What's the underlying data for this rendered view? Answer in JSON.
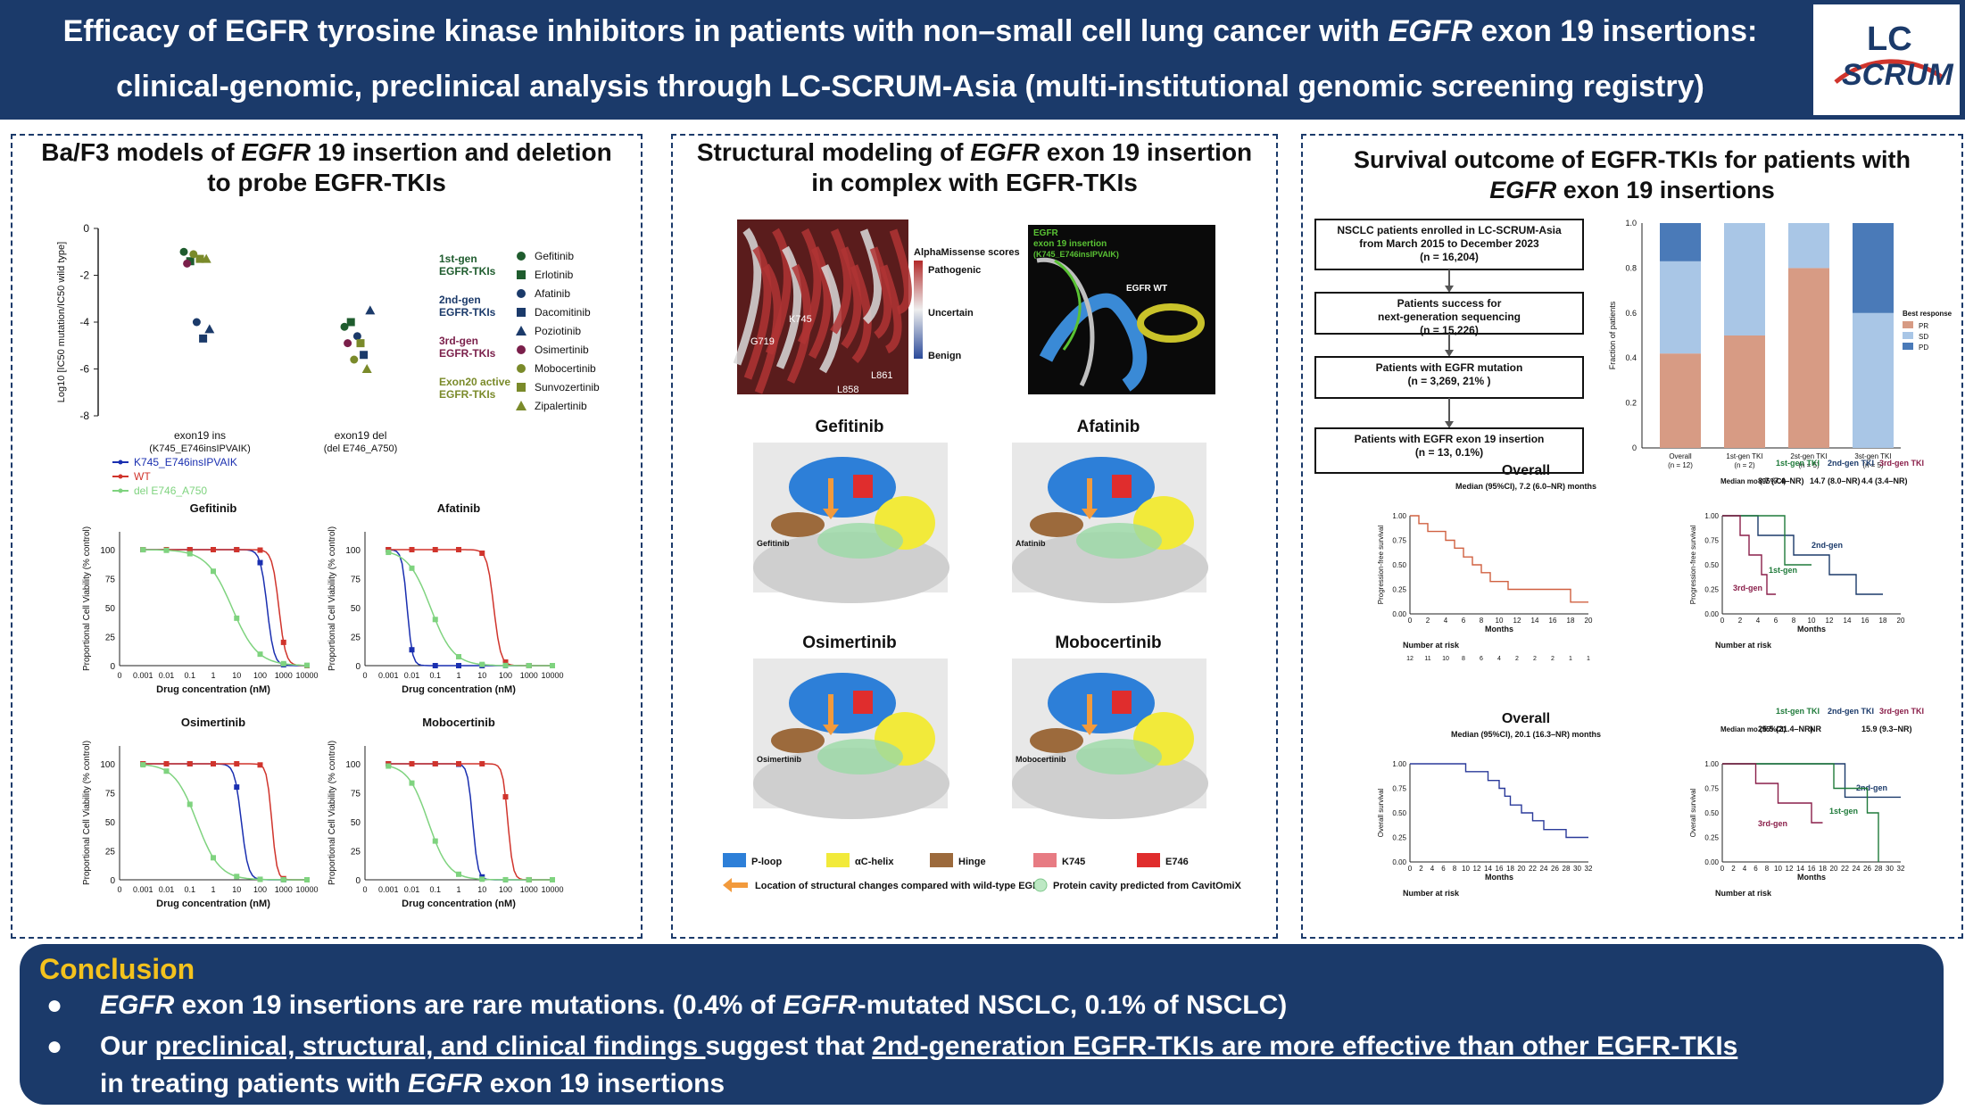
{
  "header": {
    "title_line1_a": "Efficacy of EGFR tyrosine kinase inhibitors in patients with non–small cell lung cancer with ",
    "title_line1_i": "EGFR",
    "title_line1_b": " exon 19 insertions:",
    "title_line2": "clinical-genomic, preclinical analysis through LC-SCRUM-Asia (multi-institutional genomic screening registry)",
    "logo_top": "LC",
    "logo_bottom": "SCRUM"
  },
  "left_panel": {
    "title_a": "Ba/F3 models of ",
    "title_i": "EGFR",
    "title_b": " 19 insertion and deletion",
    "title_line2": "to probe EGFR-TKIs",
    "ylabel": "Log10 [IC50 mutation/IC50 wild type]",
    "yticks": [
      "0",
      "-2",
      "-4",
      "-6",
      "-8"
    ],
    "x_labels": [
      {
        "l1": "exon19 ins",
        "l2": "(K745_E746insIPVAIK)"
      },
      {
        "l1": "exon19 del",
        "l2": "(del E746_A750)"
      }
    ],
    "legend_groups": [
      {
        "name1": "1st-gen",
        "name2": "EGFR-TKIs",
        "color": "#1f5c2e"
      },
      {
        "name1": "2nd-gen",
        "name2": "EGFR-TKIs",
        "color": "#1b3a6a"
      },
      {
        "name1": "3rd-gen",
        "name2": "EGFR-TKIs",
        "color": "#7a1f4a"
      },
      {
        "name1": "Exon20 active",
        "name2": "EGFR-TKIs",
        "color": "#7a8a2a"
      }
    ],
    "legend_drugs": [
      {
        "name": "Gefitinib",
        "color": "#1f5c2e",
        "shape": "circle"
      },
      {
        "name": "Erlotinib",
        "color": "#1f5c2e",
        "shape": "square"
      },
      {
        "name": "Afatinib",
        "color": "#1b3a6a",
        "shape": "circle"
      },
      {
        "name": "Dacomitinib",
        "color": "#1b3a6a",
        "shape": "square"
      },
      {
        "name": "Poziotinib",
        "color": "#1b3a6a",
        "shape": "triangle"
      },
      {
        "name": "Osimertinib",
        "color": "#7a1f4a",
        "shape": "circle"
      },
      {
        "name": "Mobocertinib",
        "color": "#7a8a2a",
        "shape": "circle"
      },
      {
        "name": "Sunvozertinib",
        "color": "#7a8a2a",
        "shape": "square"
      },
      {
        "name": "Zipalertinib",
        "color": "#7a8a2a",
        "shape": "triangle"
      }
    ],
    "curve_legend": [
      {
        "name": "K745_E746insIPVAIK",
        "color": "#1a2fb0"
      },
      {
        "name": "WT",
        "color": "#d0342c"
      },
      {
        "name": "del E746_A750",
        "color": "#7fd37f"
      }
    ],
    "curve_xlabel": "Drug concentration (nM)",
    "curve_ylabel": "Proportional Cell Viability (% control)",
    "curve_xticks": [
      "0",
      "0.001",
      "0.01",
      "0.1",
      "1",
      "10",
      "100",
      "1000",
      "10000"
    ],
    "curve_yticks": [
      "0",
      "25",
      "50",
      "75",
      "100"
    ],
    "curve_titles": [
      "Gefitinib",
      "Afatinib",
      "Osimertinib",
      "Mobocertinib"
    ]
  },
  "mid_panel": {
    "title_a": "Structural modeling of ",
    "title_i": "EGFR",
    "title_b": " exon 19 insertion",
    "title_line2": "in complex with EGFR-TKIs",
    "am_title": "AlphaMissense scores",
    "am_labels": [
      "Pathogenic",
      "Uncertain",
      "Benign"
    ],
    "residue_labels": [
      "K745",
      "G719",
      "L861",
      "L858"
    ],
    "right_image_labels": {
      "l1": "EGFR",
      "l2": "exon 19 insertion",
      "l3": "(K745_E746insIPVAIK)",
      "wt": "EGFR WT"
    },
    "structure_titles": [
      "Gefitinib",
      "Afatinib",
      "Osimertinib",
      "Mobocertinib"
    ],
    "legend": [
      {
        "name": "P-loop",
        "color": "#2d7fd8"
      },
      {
        "name": "αC-helix",
        "color": "#f2ea3a"
      },
      {
        "name": "Hinge",
        "color": "#9c6a3c"
      },
      {
        "name": "K745",
        "color": "#e77b83"
      },
      {
        "name": "E746",
        "color": "#e02d2d"
      }
    ],
    "legend_arrow": "Location of structural changes compared with wild-type EGFR",
    "legend_cavity": "Protein cavity predicted from CavitOmiX"
  },
  "right_panel": {
    "title_line1": "Survival outcome of EGFR-TKIs for patients with",
    "title_i": "EGFR",
    "title_b": " exon 19 insertions",
    "flow": [
      {
        "l1": "NSCLC patients enrolled in LC-SCRUM-Asia",
        "l2": "from March 2015 to December 2023",
        "l3": "(n = 16,204)"
      },
      {
        "l1": "Patients success for",
        "l2": "next-generation sequencing",
        "l3": "(n = 15,226)"
      },
      {
        "l1": "Patients with EGFR mutation",
        "l2": "(n = 3,269, 21% )",
        "l3": ""
      },
      {
        "l1": "Patients with EGFR exon 19 insertion",
        "l2": "(n = 13, 0.1%)",
        "l3": ""
      }
    ],
    "bar_chart": {
      "ylabel": "Fraction of patients",
      "yticks": [
        "0",
        "0.2",
        "0.4",
        "0.6",
        "0.8",
        "1.0"
      ],
      "legend_title": "Best response",
      "legend": [
        {
          "name": "PR",
          "color": "#d79b84"
        },
        {
          "name": "SD",
          "color": "#a9c6e6"
        },
        {
          "name": "PD",
          "color": "#4a7ab8"
        }
      ],
      "categories": [
        {
          "l1": "Overall",
          "l2": "(n = 12)"
        },
        {
          "l1": "1st-gen TKI",
          "l2": "(n = 2)"
        },
        {
          "l1": "2st-gen TKI",
          "l2": "(n = 5)"
        },
        {
          "l1": "3st-gen TKI",
          "l2": "(n = 5)"
        }
      ]
    },
    "km_pfs_overall": {
      "title": "Overall",
      "subtitle": "Median (95%CI), 7.2 (6.0–NR) months",
      "ylabel": "Progression-free survival",
      "xlabel": "Months",
      "risk_label": "Number at risk",
      "xticks": [
        "0",
        "2",
        "4",
        "6",
        "8",
        "10",
        "12",
        "14",
        "16",
        "18",
        "20"
      ],
      "yticks": [
        "0.00",
        "0.25",
        "0.50",
        "0.75",
        "1.00"
      ],
      "risk_counts": [
        "12",
        "11",
        "10",
        "8",
        "6",
        "4",
        "2",
        "2",
        "2",
        "1",
        "1"
      ]
    },
    "km_pfs_gen": {
      "header": [
        "1st-gen TKI",
        "2nd-gen TKI",
        "3rd-gen TKI"
      ],
      "median_label": "Median mo (95%CI)",
      "medians": [
        "8.7 (7.4–NR)",
        "14.7 (8.0–NR)",
        "4.4 (3.4–NR)"
      ],
      "ylabel": "Progression-free survival",
      "xlabel": "Months",
      "risk_label": "Number at risk",
      "curve_labels": [
        "2nd-gen",
        "1st-gen",
        "3rd-gen"
      ],
      "xticks": [
        "0",
        "2",
        "4",
        "6",
        "8",
        "10",
        "12",
        "14",
        "16",
        "18",
        "20"
      ],
      "yticks": [
        "0.00",
        "0.25",
        "0.50",
        "0.75",
        "1.00"
      ]
    },
    "km_os_overall": {
      "title": "Overall",
      "subtitle": "Median (95%CI), 20.1 (16.3–NR) months",
      "ylabel": "Overall survival",
      "xlabel": "Months",
      "risk_label": "Number at risk",
      "xticks": [
        "0",
        "2",
        "4",
        "6",
        "8",
        "10",
        "12",
        "14",
        "16",
        "18",
        "20",
        "22",
        "24",
        "26",
        "28",
        "30",
        "32"
      ],
      "yticks": [
        "0.00",
        "0.25",
        "0.50",
        "0.75",
        "1.00"
      ]
    },
    "km_os_gen": {
      "header": [
        "1st-gen TKI",
        "2nd-gen TKI",
        "3rd-gen TKI"
      ],
      "median_label": "Median mo (95%CI)",
      "medians": [
        "25.5 (21.4–NR)",
        "NR",
        "15.9 (9.3–NR)"
      ],
      "ylabel": "Overall survival",
      "xlabel": "Months",
      "risk_label": "Number at risk",
      "curve_labels": [
        "2nd-gen",
        "1st-gen",
        "3rd-gen"
      ],
      "xticks": [
        "0",
        "2",
        "4",
        "6",
        "8",
        "10",
        "12",
        "14",
        "16",
        "18",
        "20",
        "22",
        "24",
        "26",
        "28",
        "30",
        "32"
      ],
      "yticks": [
        "0.00",
        "0.25",
        "0.50",
        "0.75",
        "1.00"
      ]
    }
  },
  "conclusion": {
    "title": "Conclusion",
    "b1_i1": "EGFR",
    "b1_t1": " exon 19 insertions are rare mutations. (0.4% of ",
    "b1_i2": "EGFR",
    "b1_t2": "-mutated NSCLC, 0.1% of NSCLC)",
    "b2_t1": "Our ",
    "b2_u1": "preclinical, structural, and clinical findings ",
    "b2_t2": "suggest that ",
    "b2_u2": "2nd-generation EGFR-TKIs are more effective than other EGFR-TKIs",
    "b3_t1": "in treating patients with ",
    "b3_i1": "EGFR",
    "b3_t2": " exon 19 insertions"
  },
  "chart_data": [
    {
      "type": "scatter",
      "title": "",
      "ylabel": "Log10 [IC50 mutation/IC50 wild type]",
      "ylim": [
        -8,
        0
      ],
      "categories": [
        "exon19 ins (K745_E746insIPVAIK)",
        "exon19 del (del E746_A750)"
      ],
      "series": [
        {
          "name": "Gefitinib",
          "values": [
            -1.0,
            -4.2
          ]
        },
        {
          "name": "Erlotinib",
          "values": [
            -1.4,
            -4.0
          ]
        },
        {
          "name": "Afatinib",
          "values": [
            -4.0,
            -4.6
          ]
        },
        {
          "name": "Dacomitinib",
          "values": [
            -4.7,
            -5.4
          ]
        },
        {
          "name": "Poziotinib",
          "values": [
            -4.3,
            -3.5
          ]
        },
        {
          "name": "Osimertinib",
          "values": [
            -1.5,
            -4.9
          ]
        },
        {
          "name": "Mobocertinib",
          "values": [
            -1.1,
            -5.6
          ]
        },
        {
          "name": "Sunvozertinib",
          "values": [
            -1.3,
            -4.9
          ]
        },
        {
          "name": "Zipalertinib",
          "values": [
            -1.3,
            -6.0
          ]
        }
      ]
    },
    {
      "type": "bar",
      "ylabel": "Fraction of patients",
      "ylim": [
        0,
        1
      ],
      "categories": [
        "Overall (n = 12)",
        "1st-gen TKI (n = 2)",
        "2st-gen TKI (n = 5)",
        "3st-gen TKI (n = 5)"
      ],
      "series": [
        {
          "name": "PR",
          "values": [
            0.42,
            0.5,
            0.8,
            0.0
          ]
        },
        {
          "name": "SD",
          "values": [
            0.41,
            0.5,
            0.2,
            0.6
          ]
        },
        {
          "name": "PD",
          "values": [
            0.17,
            0.0,
            0.0,
            0.4
          ]
        }
      ]
    }
  ]
}
